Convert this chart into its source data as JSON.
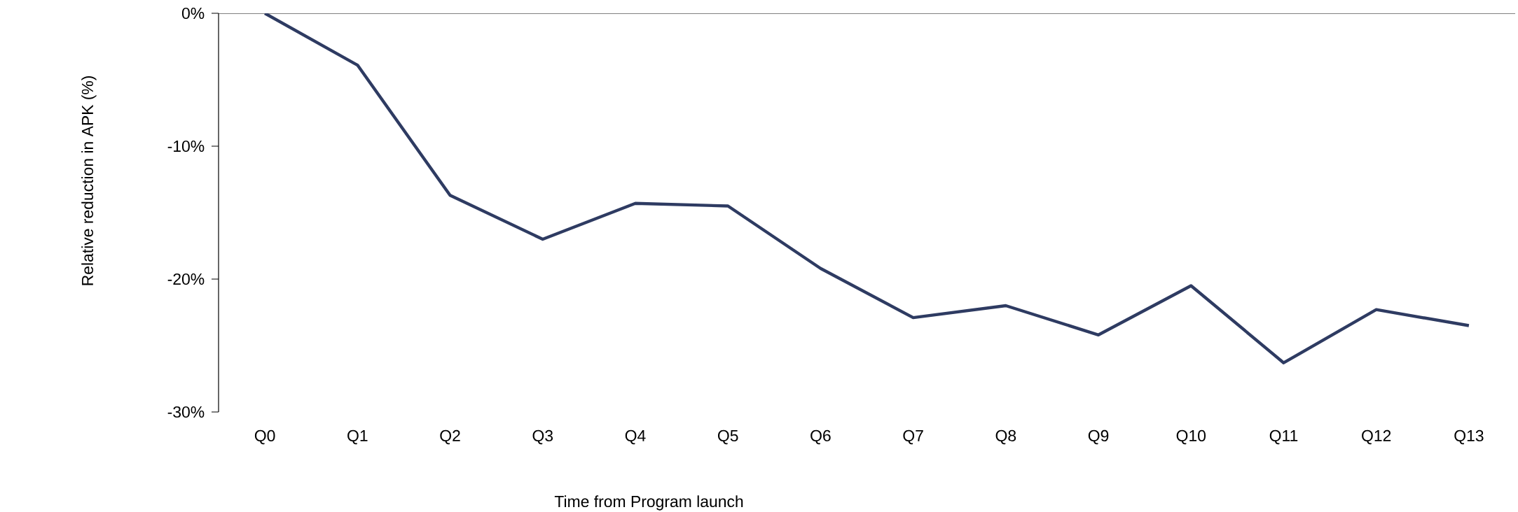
{
  "chart_data": {
    "type": "line",
    "xlabel": "Time from Program launch",
    "ylabel": "Relative reduction in APK (%)",
    "categories": [
      "Q0",
      "Q1",
      "Q2",
      "Q3",
      "Q4",
      "Q5",
      "Q6",
      "Q7",
      "Q8",
      "Q9",
      "Q10",
      "Q11",
      "Q12",
      "Q13"
    ],
    "series": [
      {
        "color": "#2e3b62",
        "values": [
          0,
          -3.9,
          -13.7,
          -17.0,
          -14.3,
          -14.5,
          -19.2,
          -22.9,
          -22.0,
          -24.2,
          -20.5,
          -26.3,
          -22.3,
          -23.5
        ]
      }
    ],
    "ylim": [
      -30,
      0
    ],
    "yticks": [
      {
        "value": -30,
        "label": "-30%"
      },
      {
        "value": -20,
        "label": "-20%"
      },
      {
        "value": -10,
        "label": "-10%"
      },
      {
        "value": 0,
        "label": "0%"
      }
    ],
    "grid": false,
    "marker": "none",
    "line_style": "solid"
  }
}
